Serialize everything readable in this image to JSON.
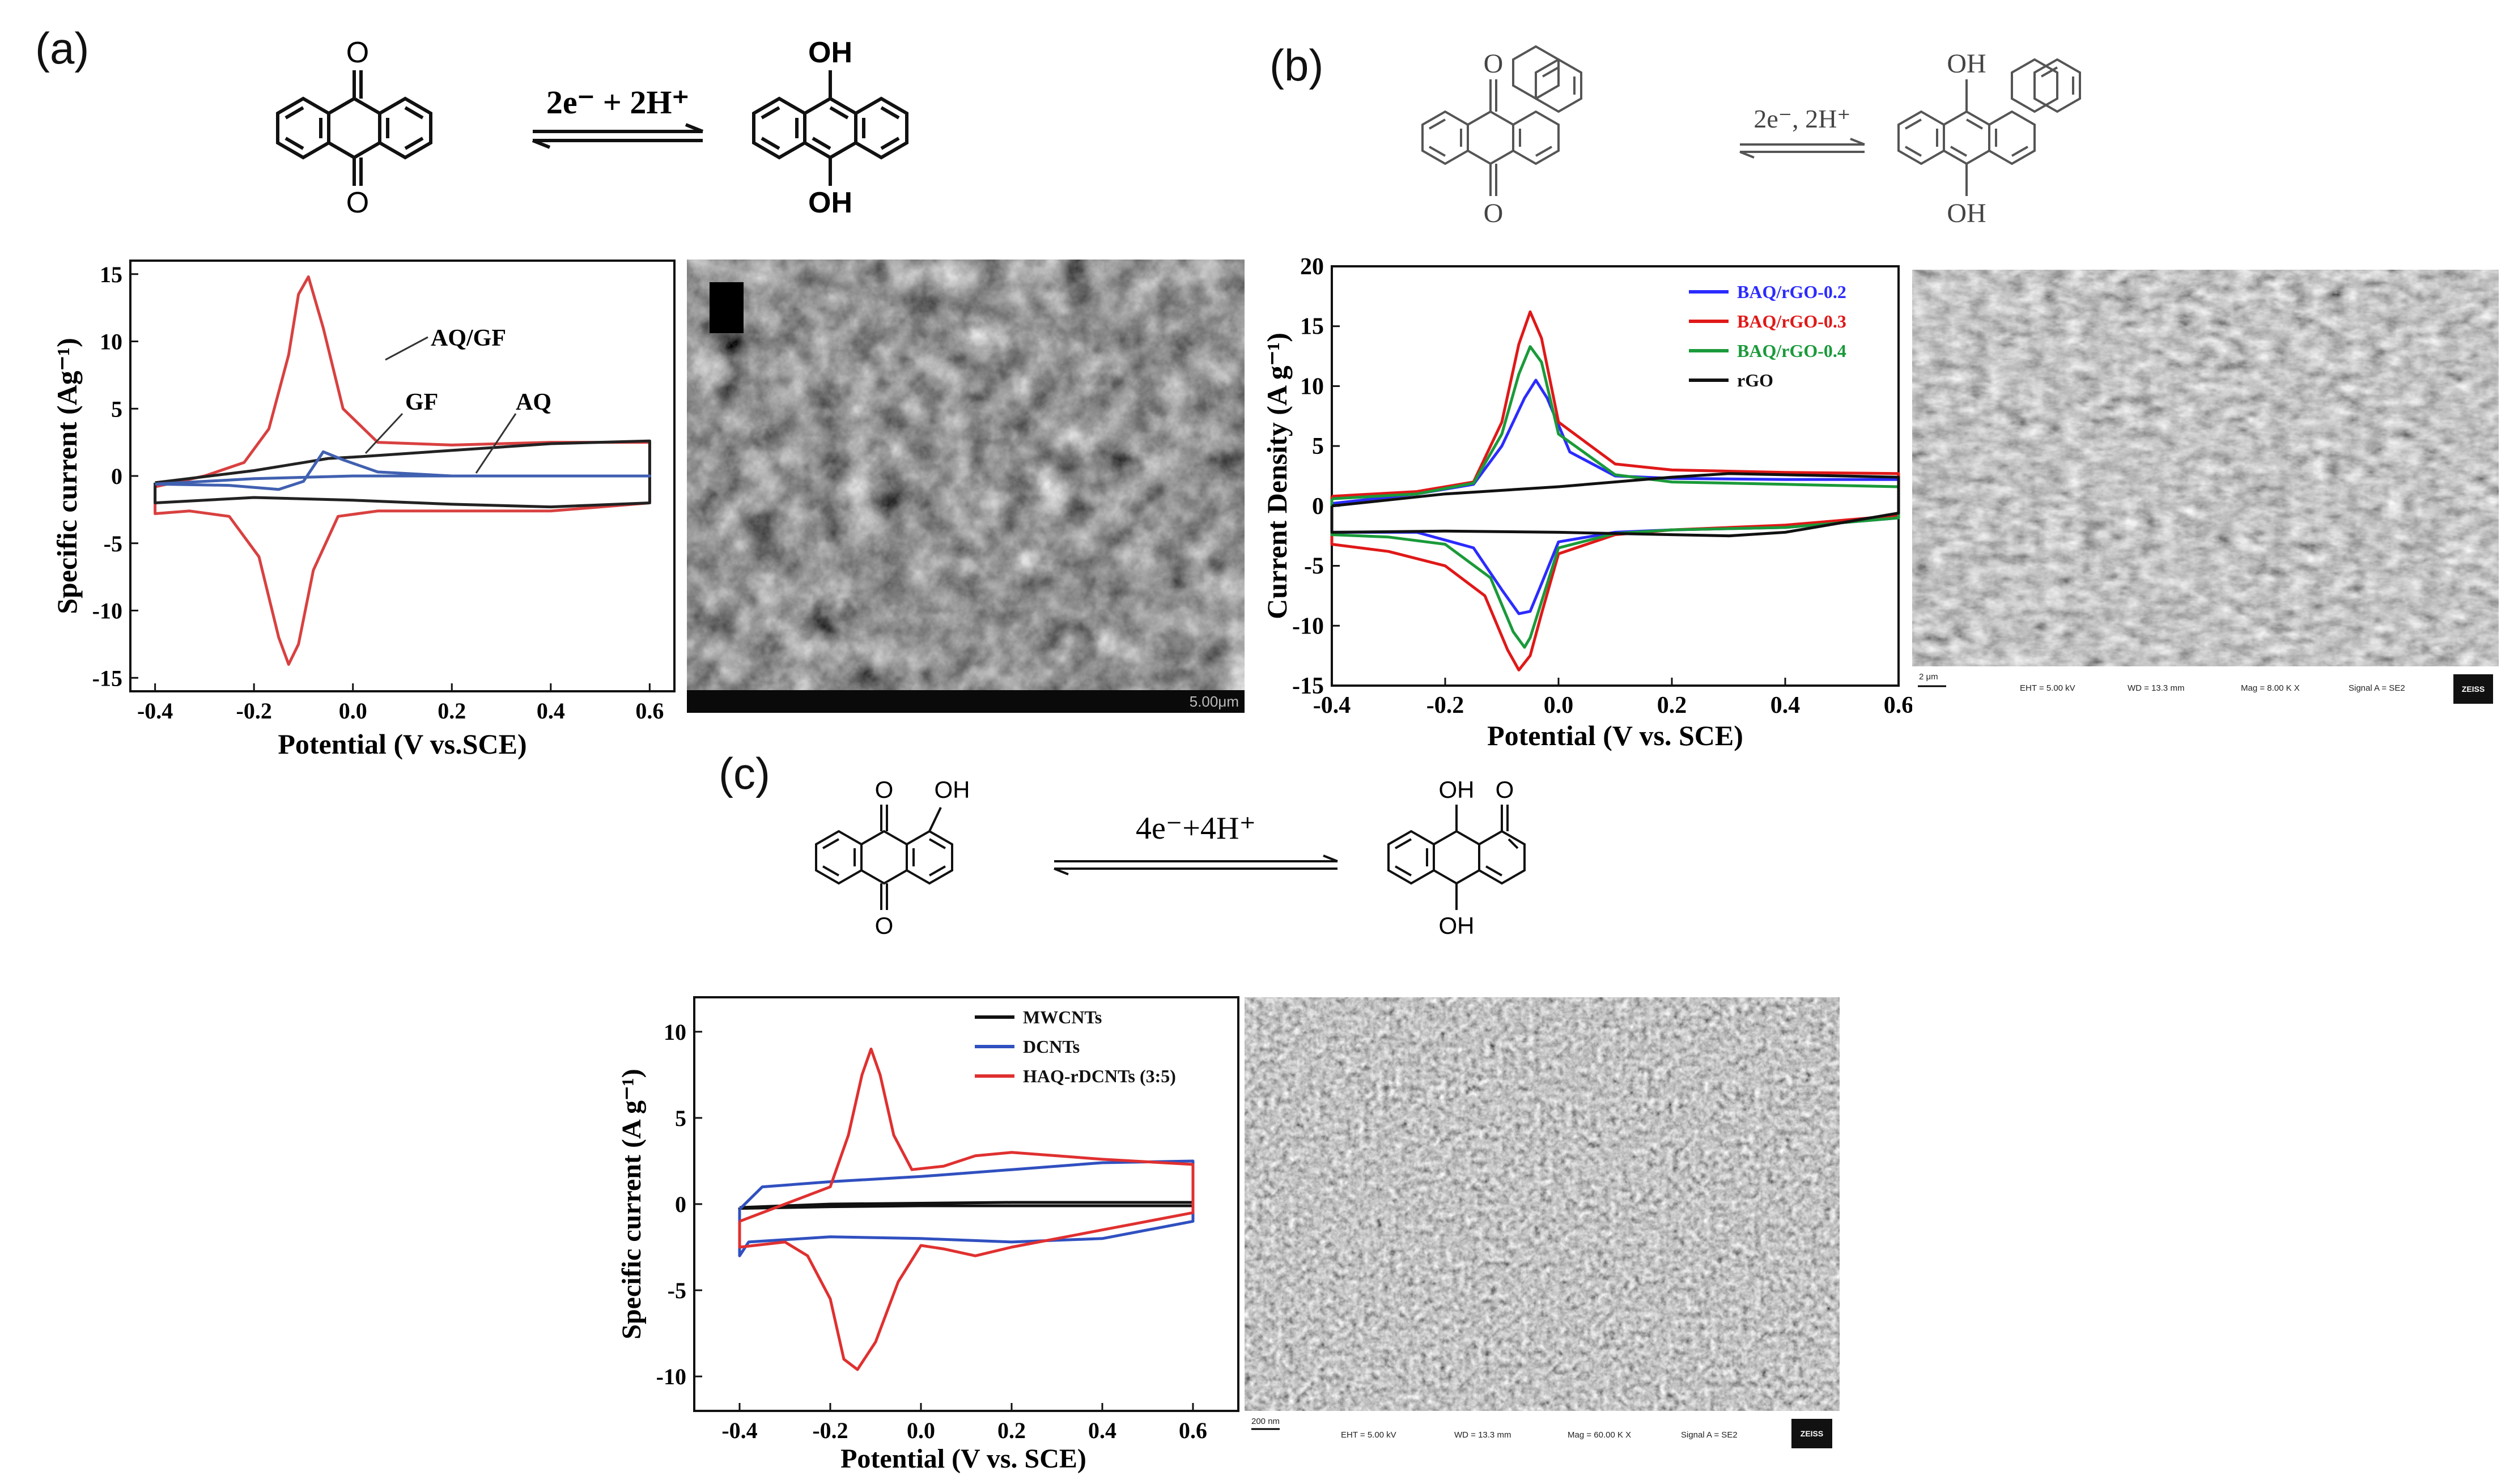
{
  "panels": {
    "a": {
      "label": "(a)",
      "reaction": {
        "arrow_label": "2e⁻ + 2H⁺",
        "reactant": {
          "top": "O",
          "bottom": "O"
        },
        "product": {
          "top": "OH",
          "bottom": "OH"
        }
      },
      "sem_scale": "5.00μm"
    },
    "b": {
      "label": "(b)",
      "reaction": {
        "arrow_label": "2e⁻, 2H⁺",
        "reactant": {
          "top": "O",
          "bottom": "O"
        },
        "product": {
          "top": "OH",
          "bottom": "OH"
        }
      },
      "sem_footer": [
        "2 μm",
        "EHT = 5.00 kV",
        "WD = 13.3 mm",
        "Mag = 8.00 K X",
        "Signal A = SE2",
        "ZEISS"
      ]
    },
    "c": {
      "label": "(c)",
      "reaction": {
        "arrow_label": "4e⁻+4H⁺",
        "reactant": {
          "top": "O",
          "oh": "OH",
          "bottom": "O"
        },
        "product": {
          "oh_top": "OH",
          "ketone": "O",
          "oh_bottom": "OH"
        }
      },
      "sem_footer": [
        "200 nm",
        "EHT = 5.00 kV",
        "WD = 13.3 mm",
        "Mag = 60.00 K X",
        "Signal A = SE2",
        "ZEISS"
      ]
    }
  },
  "chart_data": [
    {
      "id": "a",
      "type": "line",
      "title": "",
      "xlabel": "Potential (V vs.SCE)",
      "ylabel": "Specific current (Ag⁻¹)",
      "xlim": [
        -0.45,
        0.65
      ],
      "ylim": [
        -16,
        16
      ],
      "xticks": [
        -0.4,
        -0.2,
        0.0,
        0.2,
        0.4,
        0.6
      ],
      "yticks": [
        -15,
        -10,
        -5,
        0,
        5,
        10,
        15
      ],
      "annotations": [
        "AQ/GF",
        "GF",
        "AQ"
      ],
      "series": [
        {
          "name": "AQ/GF",
          "color": "#d94040",
          "x": [
            -0.4,
            -0.3,
            -0.22,
            -0.17,
            -0.13,
            -0.11,
            -0.09,
            -0.06,
            -0.02,
            0.05,
            0.2,
            0.4,
            0.6,
            0.6,
            0.4,
            0.2,
            0.05,
            -0.03,
            -0.08,
            -0.11,
            -0.13,
            -0.15,
            -0.19,
            -0.25,
            -0.33,
            -0.4,
            -0.4
          ],
          "y": [
            -0.8,
            0.0,
            1.0,
            3.5,
            9.0,
            13.5,
            14.8,
            11.0,
            5.0,
            2.5,
            2.3,
            2.5,
            2.5,
            -2.0,
            -2.6,
            -2.6,
            -2.6,
            -3.0,
            -7.0,
            -12.5,
            -14.0,
            -12.0,
            -6.0,
            -3.0,
            -2.6,
            -2.8,
            -0.8
          ]
        },
        {
          "name": "GF",
          "color": "#222222",
          "x": [
            -0.4,
            -0.2,
            -0.1,
            -0.05,
            0.0,
            0.2,
            0.4,
            0.6,
            0.6,
            0.4,
            0.2,
            0.0,
            -0.2,
            -0.4,
            -0.4
          ],
          "y": [
            -0.5,
            0.4,
            1.0,
            1.3,
            1.4,
            1.9,
            2.4,
            2.6,
            -2.0,
            -2.3,
            -2.1,
            -1.8,
            -1.6,
            -2.0,
            -0.5
          ]
        },
        {
          "name": "AQ",
          "color": "#4060b0",
          "x": [
            -0.4,
            -0.25,
            -0.15,
            -0.1,
            -0.06,
            -0.02,
            0.05,
            0.2,
            0.4,
            0.6,
            0.6,
            0.4,
            0.2,
            0.0,
            -0.2,
            -0.4
          ],
          "y": [
            -0.6,
            -0.7,
            -1.0,
            -0.4,
            1.8,
            1.2,
            0.3,
            0.0,
            0.0,
            0.0,
            0.0,
            0.0,
            0.0,
            0.0,
            -0.2,
            -0.6
          ]
        }
      ]
    },
    {
      "id": "b",
      "type": "line",
      "title": "",
      "xlabel": "Potential (V vs. SCE)",
      "ylabel": "Current Density (A g⁻¹)",
      "xlim": [
        -0.4,
        0.6
      ],
      "ylim": [
        -15,
        20
      ],
      "xticks": [
        -0.4,
        -0.2,
        0.0,
        0.2,
        0.4,
        0.6
      ],
      "yticks": [
        -15,
        -10,
        -5,
        0,
        5,
        10,
        15,
        20
      ],
      "legend_position": "top-right",
      "series": [
        {
          "name": "BAQ/rGO-0.2",
          "color": "#2b2bff",
          "x": [
            -0.4,
            -0.25,
            -0.15,
            -0.1,
            -0.06,
            -0.04,
            -0.02,
            0.02,
            0.1,
            0.2,
            0.4,
            0.6,
            0.6,
            0.4,
            0.2,
            0.1,
            0.0,
            -0.03,
            -0.05,
            -0.07,
            -0.1,
            -0.15,
            -0.25,
            -0.4,
            -0.4
          ],
          "y": [
            0.2,
            1.0,
            1.8,
            5.0,
            9.0,
            10.5,
            9.0,
            4.5,
            2.5,
            2.3,
            2.2,
            2.2,
            -1.0,
            -1.8,
            -2.0,
            -2.2,
            -3.0,
            -6.5,
            -8.8,
            -9.0,
            -7.0,
            -3.5,
            -2.2,
            -2.2,
            0.2
          ]
        },
        {
          "name": "BAQ/rGO-0.3",
          "color": "#e01818",
          "x": [
            -0.4,
            -0.25,
            -0.15,
            -0.1,
            -0.07,
            -0.05,
            -0.03,
            0.0,
            0.1,
            0.2,
            0.4,
            0.6,
            0.6,
            0.4,
            0.2,
            0.1,
            0.0,
            -0.03,
            -0.05,
            -0.07,
            -0.09,
            -0.13,
            -0.2,
            -0.3,
            -0.4,
            -0.4
          ],
          "y": [
            0.8,
            1.2,
            2.0,
            7.0,
            13.5,
            16.2,
            14.0,
            7.0,
            3.5,
            3.0,
            2.8,
            2.7,
            -0.8,
            -1.6,
            -2.0,
            -2.4,
            -4.0,
            -9.0,
            -12.5,
            -13.7,
            -12.0,
            -7.5,
            -5.0,
            -3.8,
            -3.2,
            0.8
          ]
        },
        {
          "name": "BAQ/rGO-0.4",
          "color": "#1a9a3a",
          "x": [
            -0.4,
            -0.25,
            -0.15,
            -0.1,
            -0.07,
            -0.05,
            -0.03,
            0.0,
            0.1,
            0.2,
            0.4,
            0.6,
            0.6,
            0.4,
            0.2,
            0.1,
            0.0,
            -0.03,
            -0.05,
            -0.06,
            -0.08,
            -0.12,
            -0.2,
            -0.3,
            -0.4,
            -0.4
          ],
          "y": [
            0.6,
            1.0,
            1.9,
            6.0,
            11.0,
            13.3,
            12.0,
            6.0,
            2.6,
            2.0,
            1.8,
            1.6,
            -1.0,
            -1.8,
            -2.0,
            -2.3,
            -3.5,
            -8.0,
            -11.0,
            -11.8,
            -10.5,
            -6.0,
            -3.2,
            -2.6,
            -2.4,
            0.6
          ]
        },
        {
          "name": "rGO",
          "color": "#111111",
          "x": [
            -0.4,
            -0.2,
            0.0,
            0.2,
            0.3,
            0.4,
            0.6,
            0.6,
            0.4,
            0.3,
            0.2,
            0.0,
            -0.2,
            -0.4,
            -0.4
          ],
          "y": [
            0.0,
            1.0,
            1.6,
            2.4,
            2.7,
            2.6,
            2.4,
            -0.6,
            -2.2,
            -2.5,
            -2.4,
            -2.2,
            -2.1,
            -2.2,
            0.0
          ]
        }
      ]
    },
    {
      "id": "c",
      "type": "line",
      "title": "",
      "xlabel": "Potential (V vs. SCE)",
      "ylabel": "Specific current (A g⁻¹)",
      "xlim": [
        -0.5,
        0.7
      ],
      "ylim": [
        -12,
        12
      ],
      "xticks": [
        -0.4,
        -0.2,
        0.0,
        0.2,
        0.4,
        0.6
      ],
      "yticks": [
        -10,
        -5,
        0,
        5,
        10
      ],
      "legend_position": "top-right",
      "series": [
        {
          "name": "MWCNTs",
          "color": "#111111",
          "x": [
            -0.4,
            -0.2,
            0.0,
            0.2,
            0.4,
            0.6,
            0.6,
            0.4,
            0.2,
            0.0,
            -0.2,
            -0.4,
            -0.4
          ],
          "y": [
            -0.2,
            0.0,
            0.05,
            0.1,
            0.1,
            0.1,
            -0.1,
            -0.1,
            -0.1,
            -0.1,
            -0.15,
            -0.25,
            -0.2
          ]
        },
        {
          "name": "DCNTs",
          "color": "#3050c0",
          "x": [
            -0.4,
            -0.35,
            -0.2,
            0.0,
            0.2,
            0.4,
            0.6,
            0.6,
            0.4,
            0.2,
            0.0,
            -0.2,
            -0.38,
            -0.4,
            -0.4
          ],
          "y": [
            -0.3,
            1.0,
            1.3,
            1.6,
            2.0,
            2.4,
            2.5,
            -1.0,
            -2.0,
            -2.2,
            -2.0,
            -1.9,
            -2.2,
            -3.0,
            -0.3
          ]
        },
        {
          "name": "HAQ-rDCNTs (3:5)",
          "color": "#e03030",
          "x": [
            -0.4,
            -0.3,
            -0.2,
            -0.16,
            -0.13,
            -0.11,
            -0.09,
            -0.06,
            -0.02,
            0.05,
            0.12,
            0.2,
            0.3,
            0.4,
            0.6,
            0.6,
            0.4,
            0.3,
            0.2,
            0.12,
            0.05,
            0.0,
            -0.05,
            -0.1,
            -0.14,
            -0.17,
            -0.2,
            -0.25,
            -0.3,
            -0.4,
            -0.4
          ],
          "y": [
            -1.0,
            0.0,
            1.0,
            4.0,
            7.5,
            9.0,
            7.5,
            4.0,
            2.0,
            2.2,
            2.8,
            3.0,
            2.8,
            2.6,
            2.3,
            -0.5,
            -1.5,
            -2.0,
            -2.5,
            -3.0,
            -2.6,
            -2.4,
            -4.5,
            -8.0,
            -9.6,
            -9.0,
            -5.5,
            -3.0,
            -2.2,
            -2.5,
            -1.0
          ]
        }
      ]
    }
  ]
}
